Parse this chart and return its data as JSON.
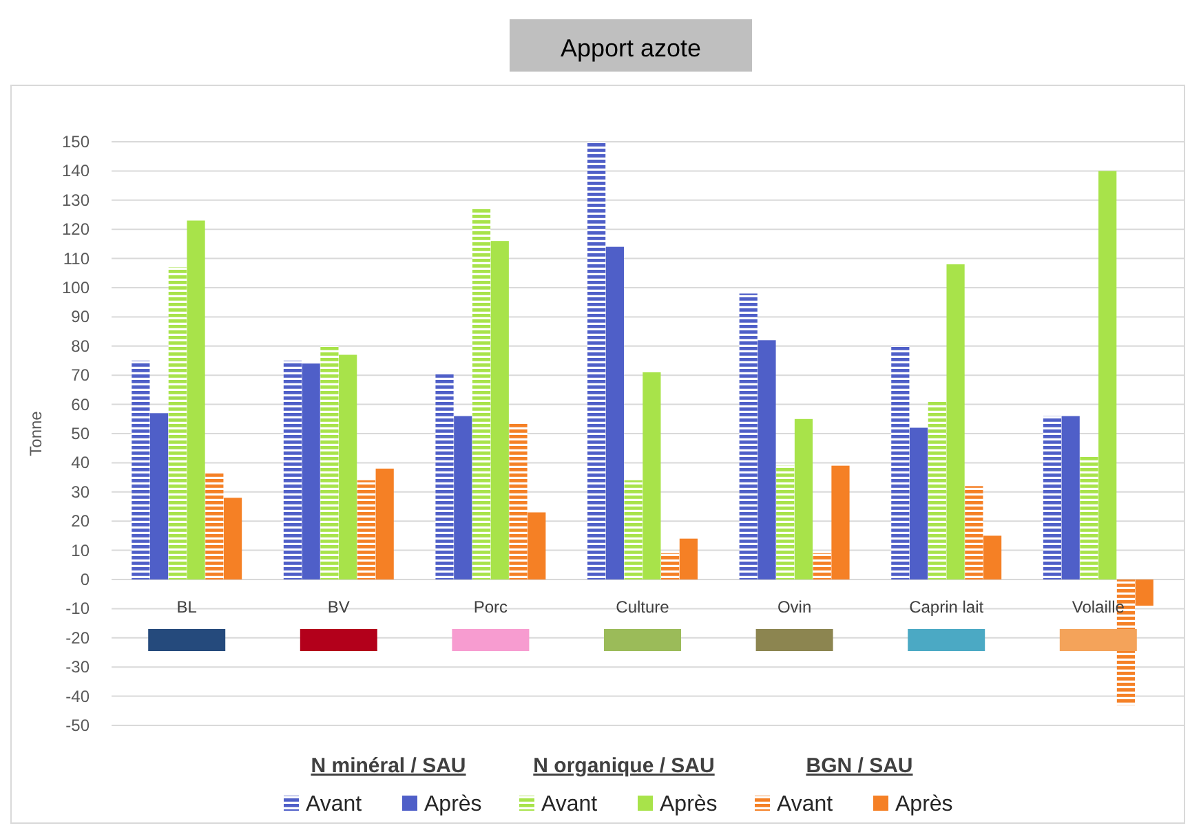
{
  "chart_data": {
    "type": "bar",
    "title": "Apport azote",
    "ylabel": "Tonne",
    "categories": [
      "BL",
      "BV",
      "Porc",
      "Culture",
      "Ovin",
      "Caprin lait",
      "Volaille"
    ],
    "series": [
      {
        "name": "Avant",
        "color": "#4f5fc8",
        "line_style": "dashed",
        "values": [
          75,
          75,
          71,
          150,
          98,
          80,
          56
        ]
      },
      {
        "name": "Après",
        "color": "#4f5fc8",
        "values": [
          57,
          74,
          56,
          114,
          82,
          52,
          56
        ]
      },
      {
        "name": "Avant",
        "color": "#a8e34a",
        "line_style": "dashed",
        "values": [
          107,
          80,
          127,
          34,
          39,
          61,
          42
        ]
      },
      {
        "name": "Après",
        "color": "#a8e34a",
        "values": [
          123,
          77,
          116,
          71,
          55,
          108,
          140
        ]
      },
      {
        "name": "Avant",
        "color": "#f58025",
        "line_style": "dashed",
        "values": [
          37,
          34,
          54,
          9,
          9,
          32,
          -43
        ]
      },
      {
        "name": "Après",
        "color": "#f58025",
        "values": [
          28,
          38,
          23,
          14,
          39,
          15,
          -9
        ]
      }
    ],
    "annotations": [
      "N minéral / SAU",
      "N organique / SAU",
      "BGN / SAU"
    ],
    "ylim": [
      -50,
      150
    ],
    "yticks": [
      -50,
      -40,
      -30,
      -20,
      -10,
      0,
      10,
      20,
      30,
      40,
      50,
      60,
      70,
      80,
      90,
      100,
      110,
      120,
      130,
      140,
      150
    ],
    "grid": "y",
    "legend": "bottom"
  }
}
